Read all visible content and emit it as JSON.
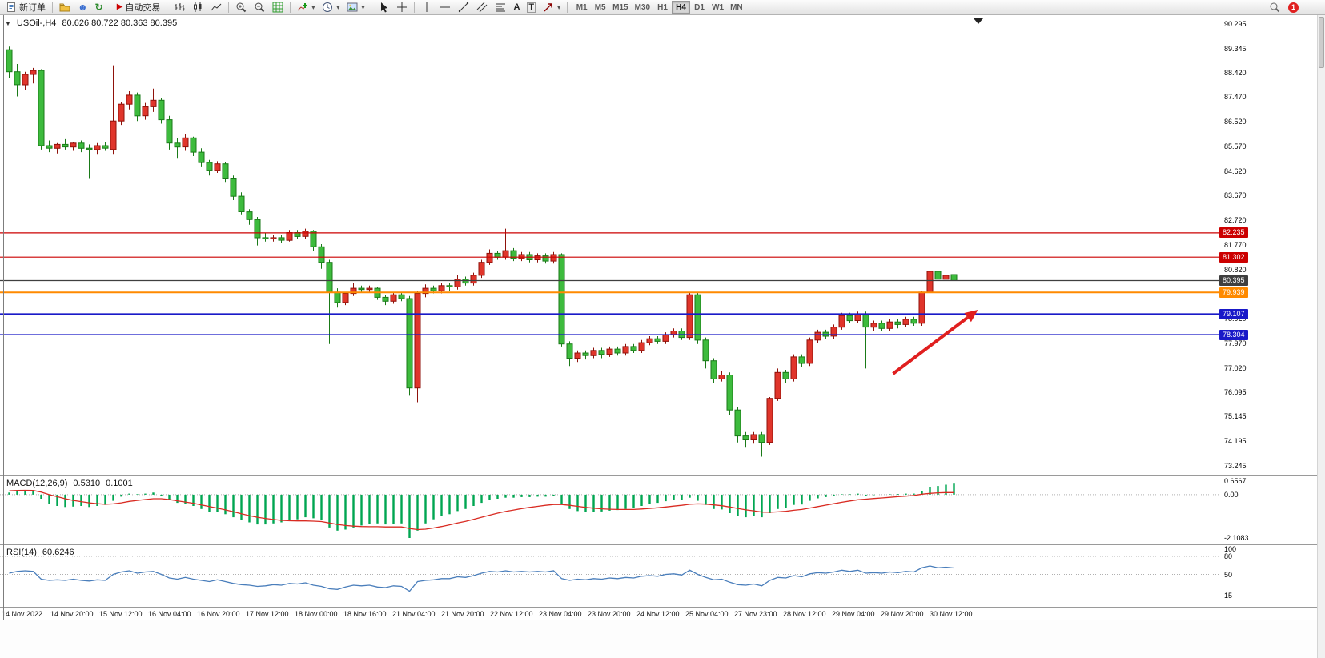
{
  "window": {
    "badge": "1"
  },
  "toolbar": {
    "new_order_label": "新订单",
    "auto_trading_label": "自动交易",
    "timeframes": [
      "M1",
      "M5",
      "M15",
      "M30",
      "H1",
      "H4",
      "D1",
      "W1",
      "MN"
    ],
    "active_timeframe": "H4",
    "notification_badge": "1"
  },
  "chart": {
    "title": "USOil-,H4",
    "ohlc": "80.626 80.722 80.363 80.395"
  },
  "price_axis": {
    "ticks": [
      "90.295",
      "89.345",
      "88.420",
      "87.470",
      "86.520",
      "85.570",
      "84.620",
      "83.670",
      "82.720",
      "81.770",
      "80.820",
      "79.870",
      "78.920",
      "77.970",
      "77.020",
      "76.095",
      "75.145",
      "74.195",
      "73.245"
    ]
  },
  "indicators": {
    "macd": {
      "name": "MACD(12,26,9)",
      "main": "0.5310",
      "signal": "0.1001",
      "axis": [
        "0.6567",
        "0.00",
        "-2.1083"
      ]
    },
    "rsi": {
      "name": "RSI(14)",
      "value": "60.6246",
      "axis": [
        "100",
        "80",
        "50",
        "15"
      ]
    }
  },
  "colors": {
    "bull": "#e0352b",
    "bull_border": "#8f120b",
    "bear": "#3dbb3d",
    "bear_border": "#1a7a18",
    "macd_hist": "#00a651",
    "macd_signal": "#d92b22",
    "rsi_line": "#4a7ebb",
    "arrow": "#e01f1f"
  },
  "chart_data": [
    {
      "type": "candlestick",
      "symbol": "USOil-",
      "timeframe": "H4",
      "last": {
        "open": 80.626,
        "high": 80.722,
        "low": 80.363,
        "close": 80.395
      },
      "ylim": [
        73.245,
        90.295
      ],
      "x_labels": [
        "14 Nov 2022",
        "14 Nov 20:00",
        "15 Nov 12:00",
        "16 Nov 04:00",
        "16 Nov 20:00",
        "17 Nov 12:00",
        "18 Nov 00:00",
        "18 Nov 16:00",
        "21 Nov 04:00",
        "21 Nov 20:00",
        "22 Nov 12:00",
        "23 Nov 04:00",
        "23 Nov 20:00",
        "24 Nov 12:00",
        "25 Nov 04:00",
        "27 Nov 23:00",
        "28 Nov 12:00",
        "29 Nov 04:00",
        "29 Nov 20:00",
        "30 Nov 12:00"
      ],
      "levels": [
        {
          "price": 82.235,
          "label": "82.235",
          "color": "#cc0000",
          "width": 1.2
        },
        {
          "price": 81.302,
          "label": "81.302",
          "color": "#cc0000",
          "width": 1.2
        },
        {
          "price": 80.395,
          "label": "80.395",
          "color": "#3f3f3f",
          "width": 1.2
        },
        {
          "price": 79.939,
          "label": "79.939",
          "color": "#ff8a00",
          "width": 2
        },
        {
          "price": 79.107,
          "label": "79.107",
          "color": "#1919c8",
          "width": 1.6
        },
        {
          "price": 78.304,
          "label": "78.304",
          "color": "#1919c8",
          "width": 1.6
        }
      ],
      "annotations": [
        {
          "type": "arrow",
          "color": "#e01f1f",
          "x1_index": 110.4,
          "price1": 76.8,
          "x2_index": 121,
          "price2": 79.27
        }
      ],
      "candles": [
        [
          89.3,
          89.42,
          88.2,
          88.45
        ],
        [
          88.45,
          88.75,
          87.5,
          87.95
        ],
        [
          87.95,
          88.45,
          87.75,
          88.35
        ],
        [
          88.35,
          88.6,
          88.0,
          88.5
        ],
        [
          88.5,
          88.55,
          85.45,
          85.6
        ],
        [
          85.6,
          85.8,
          85.35,
          85.5
        ],
        [
          85.5,
          85.7,
          85.3,
          85.65
        ],
        [
          85.65,
          85.85,
          85.45,
          85.55
        ],
        [
          85.55,
          85.75,
          85.4,
          85.7
        ],
        [
          85.7,
          85.8,
          85.35,
          85.5
        ],
        [
          85.5,
          85.65,
          84.35,
          85.45
        ],
        [
          85.45,
          85.7,
          85.25,
          85.6
        ],
        [
          85.6,
          85.75,
          85.4,
          85.5
        ],
        [
          85.45,
          88.7,
          85.25,
          86.55
        ],
        [
          86.55,
          87.3,
          86.4,
          87.2
        ],
        [
          87.2,
          87.7,
          87.0,
          87.55
        ],
        [
          87.55,
          87.65,
          86.55,
          86.75
        ],
        [
          86.75,
          87.25,
          86.6,
          87.1
        ],
        [
          87.1,
          87.8,
          86.9,
          87.35
        ],
        [
          87.35,
          87.45,
          86.45,
          86.6
        ],
        [
          86.6,
          86.75,
          85.45,
          85.7
        ],
        [
          85.7,
          85.9,
          85.1,
          85.55
        ],
        [
          85.55,
          86.05,
          85.4,
          85.9
        ],
        [
          85.9,
          85.95,
          85.2,
          85.35
        ],
        [
          85.35,
          85.5,
          84.8,
          84.95
        ],
        [
          84.95,
          85.05,
          84.45,
          84.65
        ],
        [
          84.65,
          85.0,
          84.55,
          84.9
        ],
        [
          84.9,
          84.95,
          84.2,
          84.35
        ],
        [
          84.35,
          84.45,
          83.5,
          83.65
        ],
        [
          83.65,
          83.8,
          82.95,
          83.05
        ],
        [
          83.05,
          83.15,
          82.55,
          82.75
        ],
        [
          82.75,
          82.85,
          81.75,
          82.05
        ],
        [
          82.05,
          82.25,
          81.9,
          82.0
        ],
        [
          82.0,
          82.15,
          81.9,
          82.05
        ],
        [
          82.05,
          82.15,
          81.85,
          81.95
        ],
        [
          81.95,
          82.35,
          81.9,
          82.25
        ],
        [
          82.25,
          82.35,
          82.0,
          82.1
        ],
        [
          82.1,
          82.4,
          82.0,
          82.3
        ],
        [
          82.3,
          82.35,
          81.55,
          81.7
        ],
        [
          81.7,
          81.8,
          80.85,
          81.1
        ],
        [
          81.1,
          81.2,
          77.95,
          79.95
        ],
        [
          79.95,
          80.1,
          79.35,
          79.55
        ],
        [
          79.55,
          79.95,
          79.45,
          79.9
        ],
        [
          79.9,
          80.3,
          79.8,
          80.1
        ],
        [
          80.1,
          80.2,
          79.95,
          80.05
        ],
        [
          80.05,
          80.2,
          79.95,
          80.1
        ],
        [
          80.1,
          80.15,
          79.65,
          79.75
        ],
        [
          79.75,
          79.85,
          79.45,
          79.6
        ],
        [
          79.6,
          79.95,
          79.5,
          79.85
        ],
        [
          79.85,
          79.95,
          79.6,
          79.7
        ],
        [
          79.7,
          79.8,
          75.95,
          76.25
        ],
        [
          76.25,
          80.0,
          75.7,
          79.9
        ],
        [
          79.9,
          80.25,
          79.75,
          80.1
        ],
        [
          80.1,
          80.2,
          79.9,
          80.0
        ],
        [
          80.0,
          80.3,
          79.9,
          80.2
        ],
        [
          80.2,
          80.3,
          80.0,
          80.15
        ],
        [
          80.15,
          80.6,
          80.05,
          80.45
        ],
        [
          80.45,
          80.55,
          80.2,
          80.3
        ],
        [
          80.3,
          80.7,
          80.2,
          80.6
        ],
        [
          80.6,
          81.2,
          80.5,
          81.1
        ],
        [
          81.1,
          81.6,
          81.0,
          81.45
        ],
        [
          81.45,
          81.55,
          81.2,
          81.3
        ],
        [
          81.3,
          82.4,
          81.2,
          81.55
        ],
        [
          81.55,
          81.65,
          81.15,
          81.25
        ],
        [
          81.25,
          81.5,
          81.15,
          81.4
        ],
        [
          81.4,
          81.5,
          81.1,
          81.2
        ],
        [
          81.2,
          81.45,
          81.1,
          81.35
        ],
        [
          81.35,
          81.45,
          81.05,
          81.15
        ],
        [
          81.15,
          81.5,
          81.05,
          81.4
        ],
        [
          81.4,
          81.45,
          77.85,
          77.95
        ],
        [
          77.95,
          78.05,
          77.1,
          77.4
        ],
        [
          77.4,
          77.7,
          77.25,
          77.6
        ],
        [
          77.6,
          77.7,
          77.35,
          77.5
        ],
        [
          77.5,
          77.8,
          77.4,
          77.7
        ],
        [
          77.7,
          77.8,
          77.4,
          77.55
        ],
        [
          77.55,
          77.85,
          77.45,
          77.75
        ],
        [
          77.75,
          77.85,
          77.5,
          77.6
        ],
        [
          77.6,
          77.95,
          77.5,
          77.85
        ],
        [
          77.85,
          77.95,
          77.6,
          77.7
        ],
        [
          77.7,
          78.1,
          77.6,
          78.0
        ],
        [
          78.0,
          78.25,
          77.9,
          78.15
        ],
        [
          78.15,
          78.25,
          77.95,
          78.05
        ],
        [
          78.05,
          78.4,
          77.95,
          78.3
        ],
        [
          78.3,
          78.55,
          78.2,
          78.45
        ],
        [
          78.45,
          78.55,
          78.1,
          78.2
        ],
        [
          78.2,
          79.95,
          78.1,
          79.85
        ],
        [
          79.85,
          79.95,
          77.95,
          78.1
        ],
        [
          78.1,
          78.2,
          77.0,
          77.3
        ],
        [
          77.3,
          77.4,
          76.45,
          76.6
        ],
        [
          76.6,
          76.9,
          76.5,
          76.75
        ],
        [
          76.75,
          76.85,
          75.2,
          75.4
        ],
        [
          75.4,
          75.5,
          74.15,
          74.4
        ],
        [
          74.4,
          74.55,
          73.95,
          74.25
        ],
        [
          74.25,
          74.55,
          74.1,
          74.45
        ],
        [
          74.45,
          74.55,
          73.6,
          74.15
        ],
        [
          74.15,
          75.9,
          74.05,
          75.85
        ],
        [
          75.85,
          77.0,
          75.75,
          76.85
        ],
        [
          76.85,
          76.95,
          76.45,
          76.6
        ],
        [
          76.6,
          77.55,
          76.5,
          77.45
        ],
        [
          77.45,
          77.55,
          77.05,
          77.2
        ],
        [
          77.2,
          78.2,
          77.1,
          78.1
        ],
        [
          78.1,
          78.5,
          78.0,
          78.4
        ],
        [
          78.4,
          78.5,
          78.15,
          78.25
        ],
        [
          78.25,
          78.7,
          78.15,
          78.6
        ],
        [
          78.6,
          79.15,
          78.5,
          79.05
        ],
        [
          79.05,
          79.15,
          78.75,
          78.85
        ],
        [
          78.85,
          79.2,
          78.75,
          79.1
        ],
        [
          79.1,
          79.2,
          77.0,
          78.6
        ],
        [
          78.6,
          78.85,
          78.45,
          78.75
        ],
        [
          78.75,
          78.85,
          78.45,
          78.55
        ],
        [
          78.55,
          78.9,
          78.45,
          78.8
        ],
        [
          78.8,
          78.9,
          78.55,
          78.7
        ],
        [
          78.7,
          79.0,
          78.6,
          78.9
        ],
        [
          78.9,
          79.0,
          78.65,
          78.75
        ],
        [
          78.75,
          80.0,
          78.65,
          79.95
        ],
        [
          79.95,
          81.3,
          79.85,
          80.75
        ],
        [
          80.75,
          80.85,
          80.35,
          80.45
        ],
        [
          80.45,
          80.7,
          80.35,
          80.6
        ],
        [
          80.626,
          80.722,
          80.363,
          80.395
        ]
      ]
    },
    {
      "type": "bar",
      "name": "MACD(12,26,9)",
      "current_main": 0.531,
      "current_signal": 0.1001,
      "ylim": [
        -2.1083,
        0.6567
      ],
      "histogram": [
        0.1,
        0.15,
        0.18,
        0.15,
        -0.2,
        -0.45,
        -0.55,
        -0.6,
        -0.58,
        -0.55,
        -0.6,
        -0.55,
        -0.5,
        -0.3,
        -0.1,
        0.05,
        0.02,
        0.05,
        0.1,
        -0.05,
        -0.25,
        -0.4,
        -0.45,
        -0.55,
        -0.7,
        -0.85,
        -0.85,
        -0.95,
        -1.1,
        -1.25,
        -1.35,
        -1.45,
        -1.45,
        -1.4,
        -1.35,
        -1.25,
        -1.2,
        -1.1,
        -1.15,
        -1.25,
        -1.6,
        -1.75,
        -1.7,
        -1.6,
        -1.5,
        -1.42,
        -1.4,
        -1.45,
        -1.42,
        -1.4,
        -2.1083,
        -1.75,
        -1.4,
        -1.2,
        -1.05,
        -0.95,
        -0.8,
        -0.7,
        -0.55,
        -0.4,
        -0.25,
        -0.2,
        -0.15,
        -0.15,
        -0.12,
        -0.12,
        -0.1,
        -0.1,
        -0.08,
        -0.45,
        -0.7,
        -0.8,
        -0.85,
        -0.85,
        -0.82,
        -0.78,
        -0.75,
        -0.7,
        -0.65,
        -0.55,
        -0.45,
        -0.4,
        -0.32,
        -0.25,
        -0.25,
        -0.15,
        -0.3,
        -0.5,
        -0.7,
        -0.72,
        -0.9,
        -1.05,
        -1.1,
        -1.05,
        -1.1,
        -0.9,
        -0.7,
        -0.65,
        -0.5,
        -0.48,
        -0.3,
        -0.18,
        -0.12,
        -0.05,
        0.02,
        0.02,
        0.05,
        -0.05,
        -0.02,
        0.0,
        0.02,
        0.03,
        0.05,
        0.05,
        0.18,
        0.35,
        0.42,
        0.48,
        0.531
      ],
      "signal": [
        0.18,
        0.2,
        0.21,
        0.2,
        0.12,
        0.0,
        -0.1,
        -0.2,
        -0.28,
        -0.34,
        -0.4,
        -0.44,
        -0.47,
        -0.45,
        -0.4,
        -0.33,
        -0.28,
        -0.24,
        -0.2,
        -0.2,
        -0.24,
        -0.3,
        -0.36,
        -0.42,
        -0.5,
        -0.58,
        -0.66,
        -0.74,
        -0.83,
        -0.93,
        -1.02,
        -1.1,
        -1.16,
        -1.21,
        -1.25,
        -1.27,
        -1.28,
        -1.28,
        -1.29,
        -1.31,
        -1.38,
        -1.45,
        -1.5,
        -1.53,
        -1.55,
        -1.56,
        -1.56,
        -1.57,
        -1.57,
        -1.57,
        -1.65,
        -1.7,
        -1.68,
        -1.62,
        -1.55,
        -1.47,
        -1.38,
        -1.3,
        -1.2,
        -1.1,
        -1.0,
        -0.9,
        -0.82,
        -0.75,
        -0.68,
        -0.62,
        -0.57,
        -0.52,
        -0.48,
        -0.48,
        -0.52,
        -0.57,
        -0.62,
        -0.66,
        -0.69,
        -0.71,
        -0.72,
        -0.72,
        -0.72,
        -0.7,
        -0.67,
        -0.64,
        -0.6,
        -0.56,
        -0.52,
        -0.47,
        -0.45,
        -0.46,
        -0.5,
        -0.54,
        -0.6,
        -0.67,
        -0.74,
        -0.79,
        -0.85,
        -0.86,
        -0.84,
        -0.81,
        -0.76,
        -0.72,
        -0.65,
        -0.58,
        -0.51,
        -0.44,
        -0.37,
        -0.31,
        -0.25,
        -0.22,
        -0.19,
        -0.16,
        -0.13,
        -0.1,
        -0.07,
        -0.04,
        0.02,
        0.06,
        0.09,
        0.1,
        0.1001
      ]
    },
    {
      "type": "line",
      "name": "RSI(14)",
      "current": 60.6246,
      "ylim": [
        15,
        100
      ],
      "levels": [
        80,
        50
      ],
      "values": [
        52,
        55,
        56,
        55,
        42,
        40,
        41,
        40,
        42,
        40,
        39,
        41,
        40,
        50,
        54,
        56,
        52,
        54,
        55,
        50,
        44,
        42,
        45,
        42,
        40,
        38,
        41,
        38,
        35,
        33,
        32,
        30,
        31,
        33,
        32,
        35,
        34,
        36,
        32,
        30,
        26,
        25,
        29,
        32,
        31,
        32,
        29,
        28,
        31,
        30,
        22,
        38,
        40,
        41,
        43,
        43,
        46,
        45,
        48,
        52,
        55,
        54,
        56,
        54,
        55,
        54,
        55,
        54,
        56,
        43,
        40,
        42,
        41,
        43,
        42,
        44,
        43,
        45,
        44,
        47,
        48,
        47,
        50,
        51,
        49,
        57,
        50,
        45,
        41,
        42,
        37,
        33,
        32,
        34,
        31,
        40,
        45,
        44,
        48,
        46,
        51,
        53,
        52,
        54,
        57,
        55,
        57,
        52,
        53,
        52,
        54,
        53,
        55,
        54,
        61,
        64,
        61,
        62,
        60.62
      ]
    }
  ]
}
